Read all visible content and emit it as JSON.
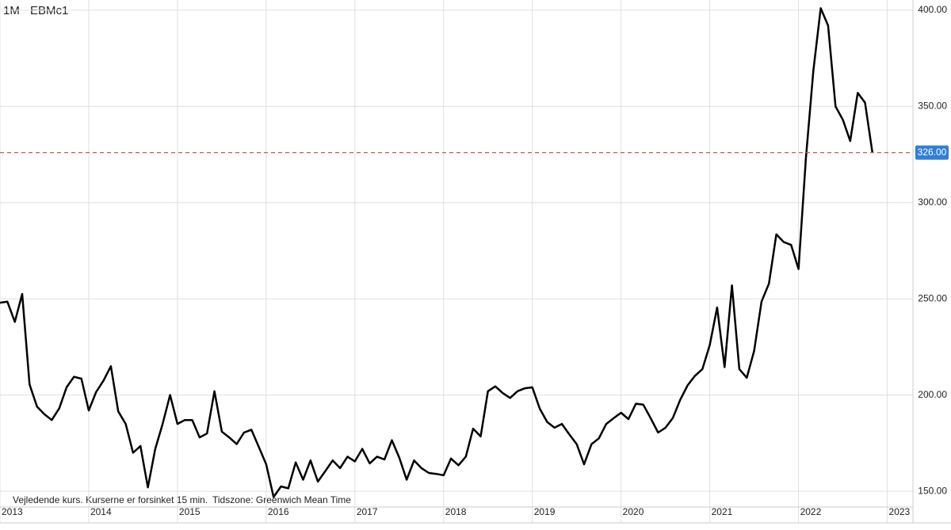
{
  "chart_data": {
    "type": "line",
    "interval": "1M",
    "symbol": "EBMc1",
    "footnote": "Vejledende kurs. Kurserne er forsinket 15 min.",
    "timezone": "Tidszone: Greenwich Mean Time",
    "color": "#000000",
    "x": [
      2013,
      2013.083,
      2013.167,
      2013.25,
      2013.333,
      2013.417,
      2013.5,
      2013.583,
      2013.667,
      2013.75,
      2013.833,
      2013.917,
      2014,
      2014.083,
      2014.167,
      2014.25,
      2014.333,
      2014.417,
      2014.5,
      2014.583,
      2014.667,
      2014.75,
      2014.833,
      2014.917,
      2015,
      2015.083,
      2015.167,
      2015.25,
      2015.333,
      2015.417,
      2015.5,
      2015.583,
      2015.667,
      2015.75,
      2015.833,
      2015.917,
      2016,
      2016.083,
      2016.167,
      2016.25,
      2016.333,
      2016.417,
      2016.5,
      2016.583,
      2016.667,
      2016.75,
      2016.833,
      2016.917,
      2017,
      2017.083,
      2017.167,
      2017.25,
      2017.333,
      2017.417,
      2017.5,
      2017.583,
      2017.667,
      2017.75,
      2017.833,
      2017.917,
      2018,
      2018.083,
      2018.167,
      2018.25,
      2018.333,
      2018.417,
      2018.5,
      2018.583,
      2018.667,
      2018.75,
      2018.833,
      2018.917,
      2019,
      2019.083,
      2019.167,
      2019.25,
      2019.333,
      2019.417,
      2019.5,
      2019.583,
      2019.667,
      2019.75,
      2019.833,
      2019.917,
      2020,
      2020.083,
      2020.167,
      2020.25,
      2020.333,
      2020.417,
      2020.5,
      2020.583,
      2020.667,
      2020.75,
      2020.833,
      2020.917,
      2021,
      2021.083,
      2021.167,
      2021.25,
      2021.333,
      2021.417,
      2021.5,
      2021.583,
      2021.667,
      2021.75,
      2021.833,
      2021.917,
      2022,
      2022.083,
      2022.167,
      2022.25,
      2022.333,
      2022.417,
      2022.5,
      2022.583,
      2022.667,
      2022.75,
      2022.833
    ],
    "values": [
      248,
      248.5,
      238,
      252.5,
      205.5,
      194,
      190,
      187,
      193,
      204,
      209.5,
      208.5,
      192,
      201.5,
      207.5,
      215,
      191.5,
      185,
      170,
      173.5,
      152,
      172,
      185,
      200,
      185,
      187,
      187,
      178,
      180,
      202,
      181,
      178,
      174.5,
      180.5,
      182,
      173,
      164,
      147,
      152.5,
      151.5,
      165,
      156,
      166,
      155,
      160.5,
      166,
      162,
      168,
      165.5,
      172,
      164.5,
      168,
      166.5,
      176.5,
      167.5,
      156,
      166,
      162,
      159.5,
      159,
      158.3,
      167,
      163.5,
      168,
      182.5,
      178.5,
      202,
      204.5,
      201,
      198.5,
      202,
      203.5,
      204,
      193,
      186,
      183,
      185,
      179.5,
      174.5,
      164,
      174.5,
      177.5,
      185,
      188,
      190.8,
      187.5,
      195.5,
      195,
      188,
      180.5,
      183,
      188,
      197.5,
      205,
      210,
      213.5,
      226,
      245.5,
      214.5,
      257,
      213.5,
      209,
      223,
      248.5,
      258,
      283.5,
      279.5,
      278,
      265.5,
      323,
      368.5,
      401,
      392,
      350,
      343,
      332,
      357,
      352,
      326
    ],
    "xlim": [
      2013,
      2023.29
    ],
    "xticks": [
      2013,
      2014,
      2015,
      2016,
      2017,
      2018,
      2019,
      2020,
      2021,
      2022,
      2023
    ],
    "ylim": [
      141.8,
      405.3
    ],
    "yticks": [
      {
        "value": 150,
        "label": "150.00"
      },
      {
        "value": 200,
        "label": "200.00"
      },
      {
        "value": 250,
        "label": "250.00"
      },
      {
        "value": 300,
        "label": "300.00"
      },
      {
        "value": 350,
        "label": "350.00"
      },
      {
        "value": 400,
        "label": "400.00"
      }
    ],
    "grid": true,
    "last_value": {
      "value": 326,
      "label": "326.00"
    }
  }
}
